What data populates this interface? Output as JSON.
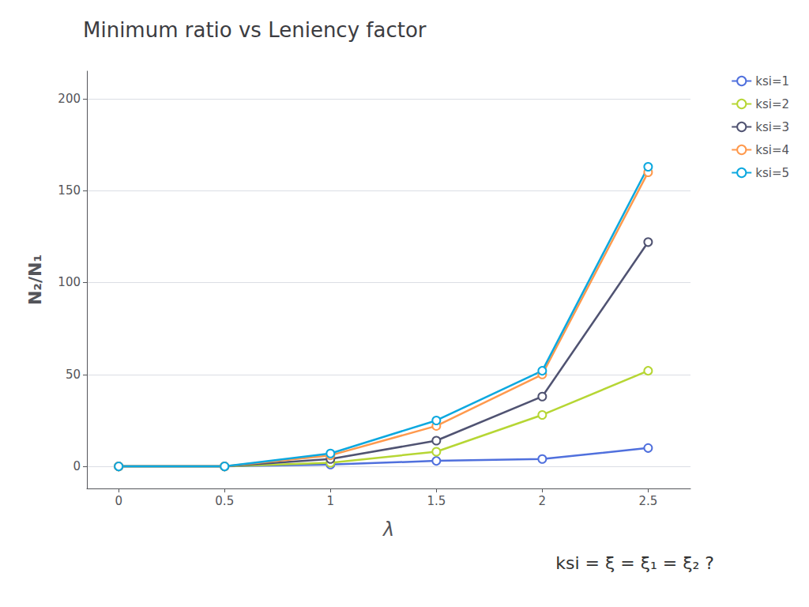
{
  "chart_data": {
    "type": "line",
    "title": "Minimum ratio vs Leniency factor",
    "x_label": "λ",
    "y_label": "N₂/N₁",
    "annotation": "ksi = ξ = ξ₁ = ξ₂ ?",
    "x": [
      0,
      0.5,
      1,
      1.5,
      2,
      2.5
    ],
    "xlim": [
      -0.15,
      2.7
    ],
    "ylim": [
      -12,
      215
    ],
    "xticks": [
      0,
      0.5,
      1,
      1.5,
      2,
      2.5
    ],
    "yticks": [
      0,
      50,
      100,
      150,
      200
    ],
    "grid": "y",
    "legend": "right",
    "marker": "circle",
    "series": [
      {
        "name": "ksi=1",
        "values": [
          0,
          0,
          1,
          3,
          4,
          10
        ]
      },
      {
        "name": "ksi=2",
        "values": [
          0,
          0,
          2,
          8,
          28,
          52
        ]
      },
      {
        "name": "ksi=3",
        "values": [
          0,
          0,
          4,
          14,
          38,
          122
        ]
      },
      {
        "name": "ksi=4",
        "values": [
          0,
          0,
          6,
          22,
          50,
          160
        ]
      },
      {
        "name": "ksi=5",
        "values": [
          0,
          0,
          7,
          25,
          52,
          163
        ]
      }
    ]
  }
}
